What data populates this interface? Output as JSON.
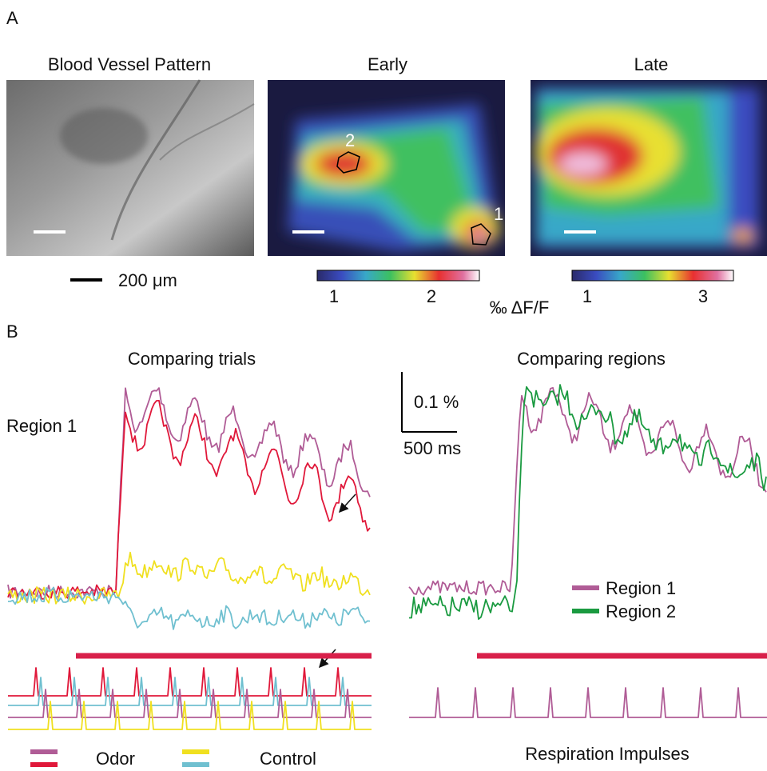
{
  "panel_a": {
    "label": "A",
    "images": [
      {
        "title": "Blood Vessel Pattern"
      },
      {
        "title": "Early",
        "roi_labels": [
          "2",
          "1"
        ]
      },
      {
        "title": "Late"
      }
    ],
    "scale_bar": "200 μm",
    "colorbars": [
      {
        "ticks": [
          "1",
          "2"
        ]
      },
      {
        "ticks": [
          "1",
          "3"
        ]
      }
    ],
    "colorbar_unit": "‰ ΔF/F"
  },
  "panel_b": {
    "label": "B",
    "left_title": "Comparing trials",
    "right_title": "Comparing regions",
    "row_label": "Region 1",
    "scale_y": "0.1 %",
    "scale_x": "500 ms",
    "legend_right": [
      "Region 1",
      "Region 2"
    ],
    "legend_bottom": [
      "Odor",
      "Control"
    ],
    "respiration_label": "Respiration Impulses"
  }
}
